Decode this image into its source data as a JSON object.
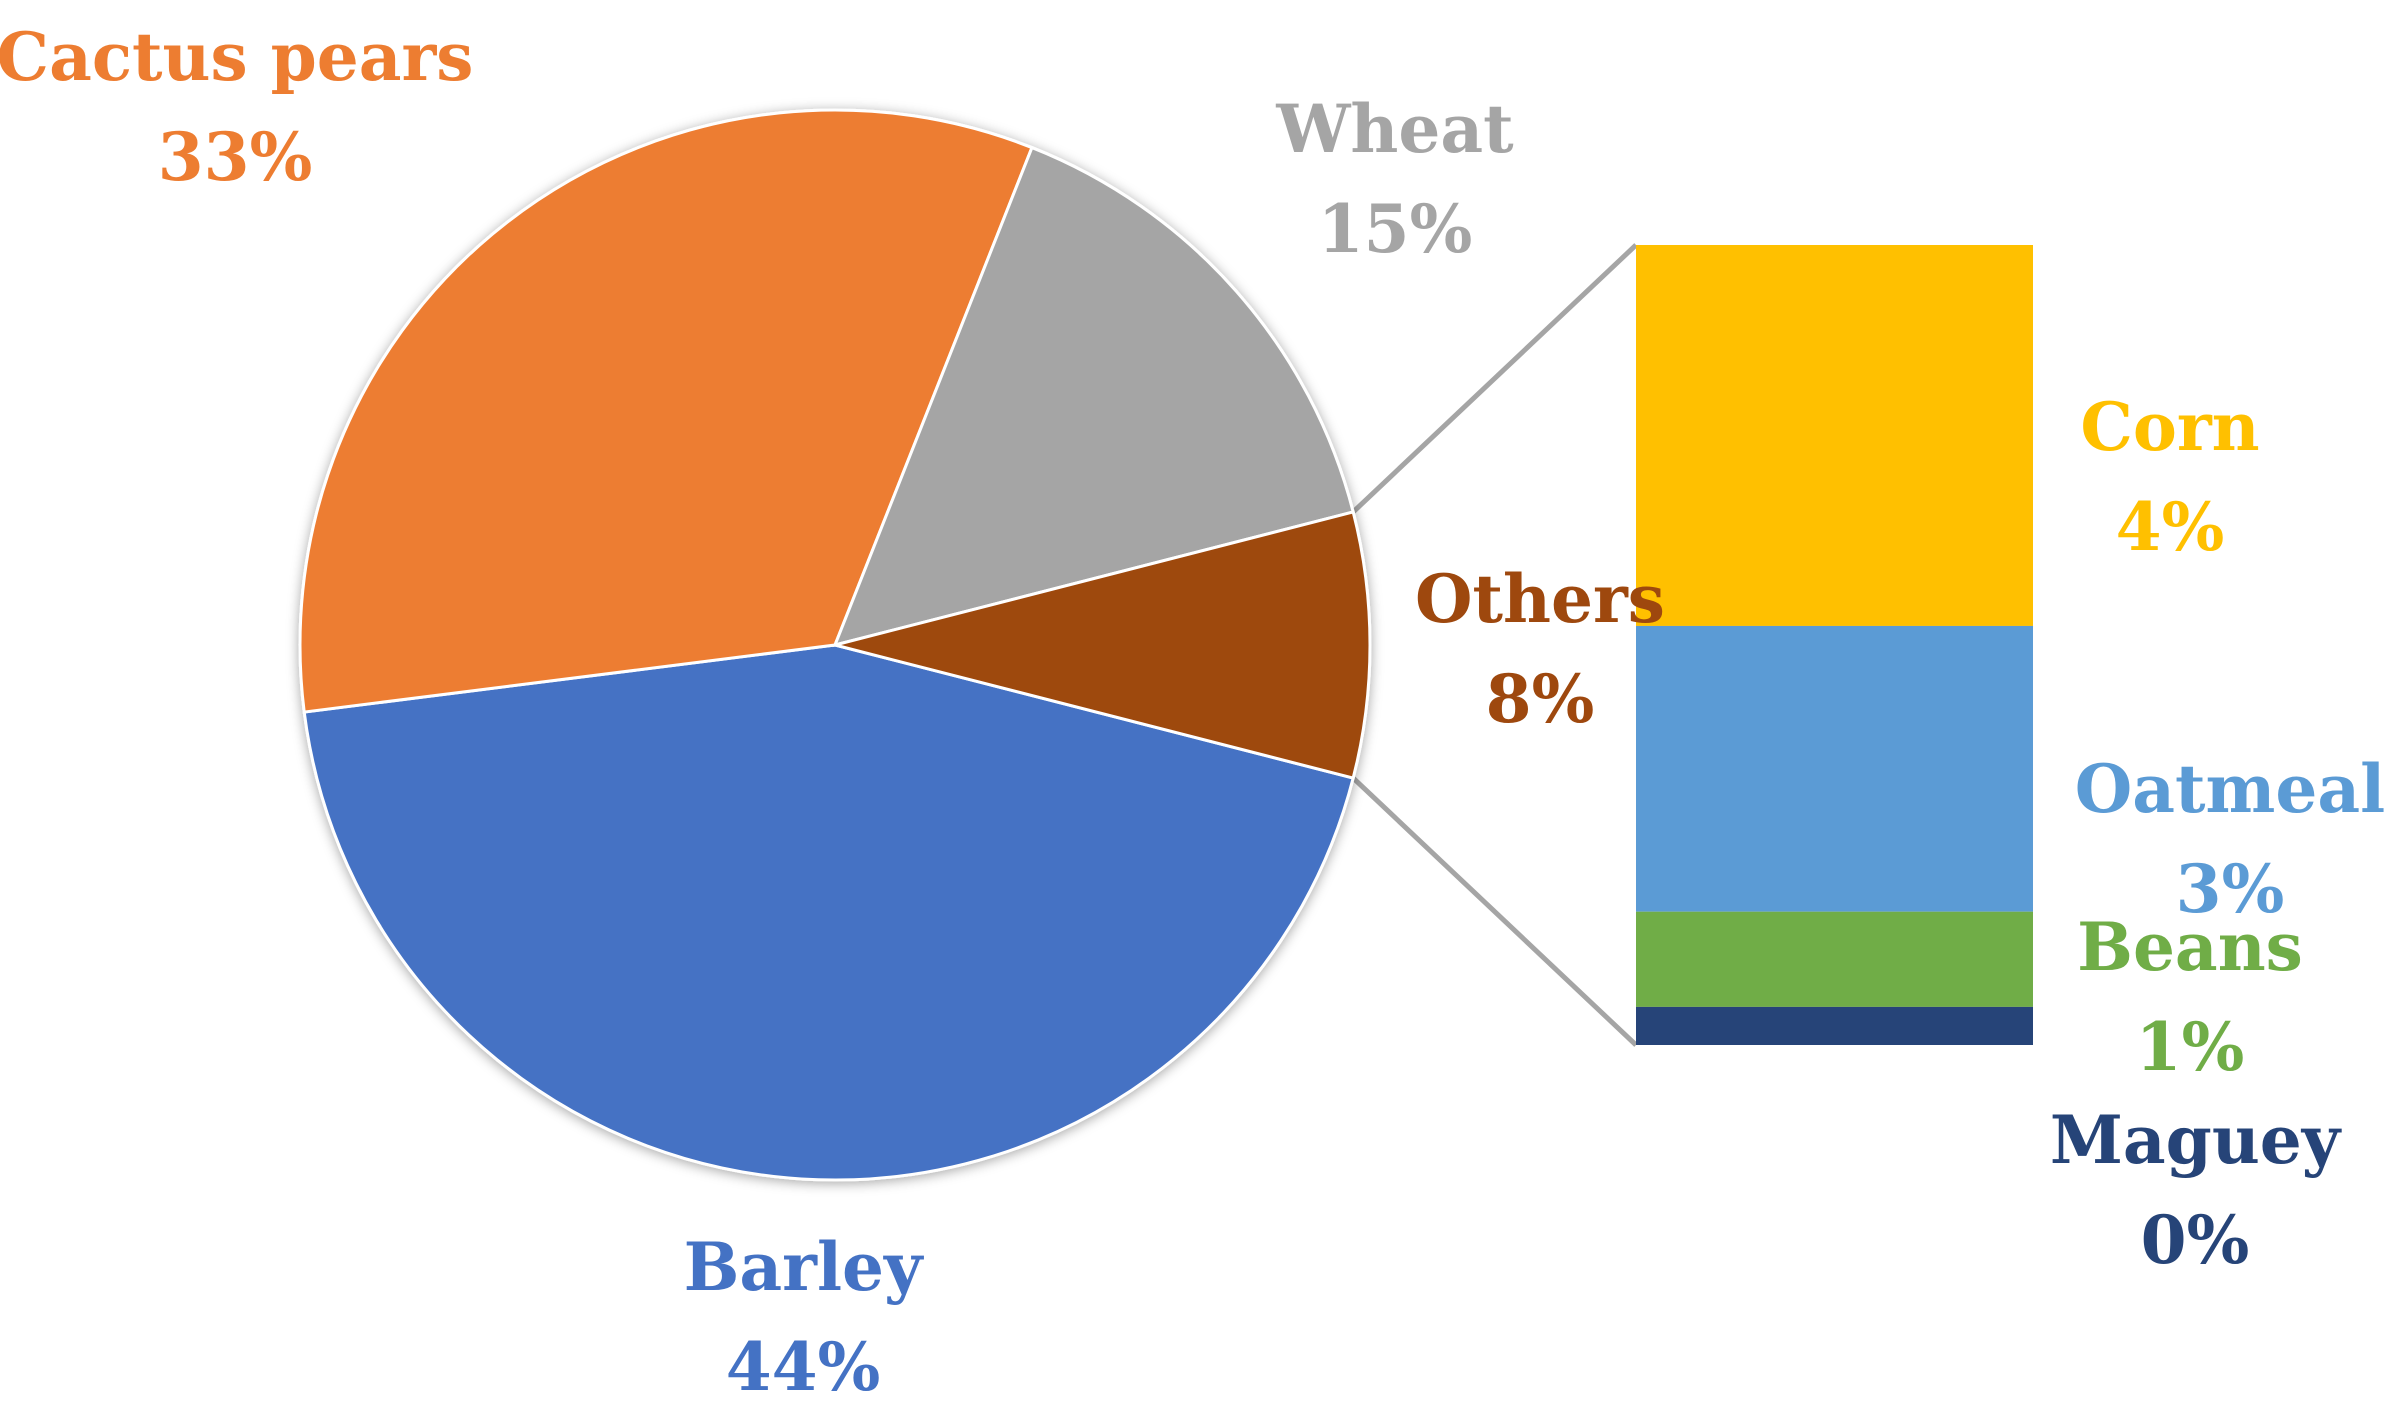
{
  "chart_data": {
    "type": "pie",
    "variant": "bar-of-pie",
    "title": "",
    "slices": [
      {
        "label": "Barley",
        "value": 44,
        "percent_label": "44%",
        "color": "#4472C4"
      },
      {
        "label": "Cactus pears",
        "value": 33,
        "percent_label": "33%",
        "color": "#ED7D31"
      },
      {
        "label": "Wheat",
        "value": 15,
        "percent_label": "15%",
        "color": "#A5A5A5"
      },
      {
        "label": "Others",
        "value": 8,
        "percent_label": "8%",
        "color": "#9E480E"
      }
    ],
    "others_breakdown": [
      {
        "label": "Corn",
        "value": 4,
        "percent_label": "4%",
        "color": "#FFC000"
      },
      {
        "label": "Oatmeal",
        "value": 3,
        "percent_label": "3%",
        "color": "#5B9BD5"
      },
      {
        "label": "Beans",
        "value": 1,
        "percent_label": "1%",
        "color": "#70AD47"
      },
      {
        "label": "Maguey",
        "value": 0.4,
        "percent_label": "0%",
        "color": "#264478"
      }
    ],
    "connector_color": "#A5A5A5"
  }
}
